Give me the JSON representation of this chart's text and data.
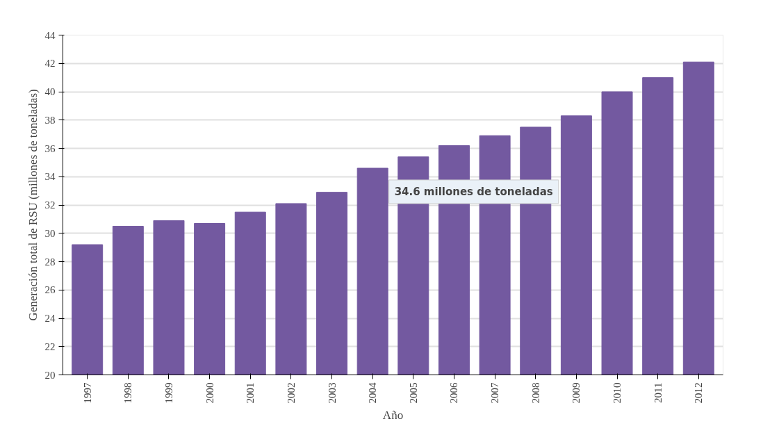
{
  "chart_data": {
    "type": "bar",
    "xlabel": "Año",
    "ylabel": "Generación total de RSU (millones de toneladas)",
    "categories": [
      "1997",
      "1998",
      "1999",
      "2000",
      "2001",
      "2002",
      "2003",
      "2004",
      "2005",
      "2006",
      "2007",
      "2008",
      "2009",
      "2010",
      "2011",
      "2012"
    ],
    "values": [
      29.2,
      30.5,
      30.9,
      30.7,
      31.5,
      32.1,
      32.9,
      34.6,
      35.4,
      36.2,
      36.9,
      37.5,
      38.3,
      40.0,
      41.0,
      42.1
    ],
    "color": "#7359a0",
    "ylim": [
      20,
      44
    ],
    "yticks": [
      20,
      22,
      24,
      26,
      28,
      30,
      32,
      34,
      36,
      38,
      40,
      42,
      44
    ],
    "grid": "y",
    "annotations": [
      {
        "text": "34.6 millones de toneladas",
        "x": "2004",
        "y": 34.6
      }
    ]
  }
}
